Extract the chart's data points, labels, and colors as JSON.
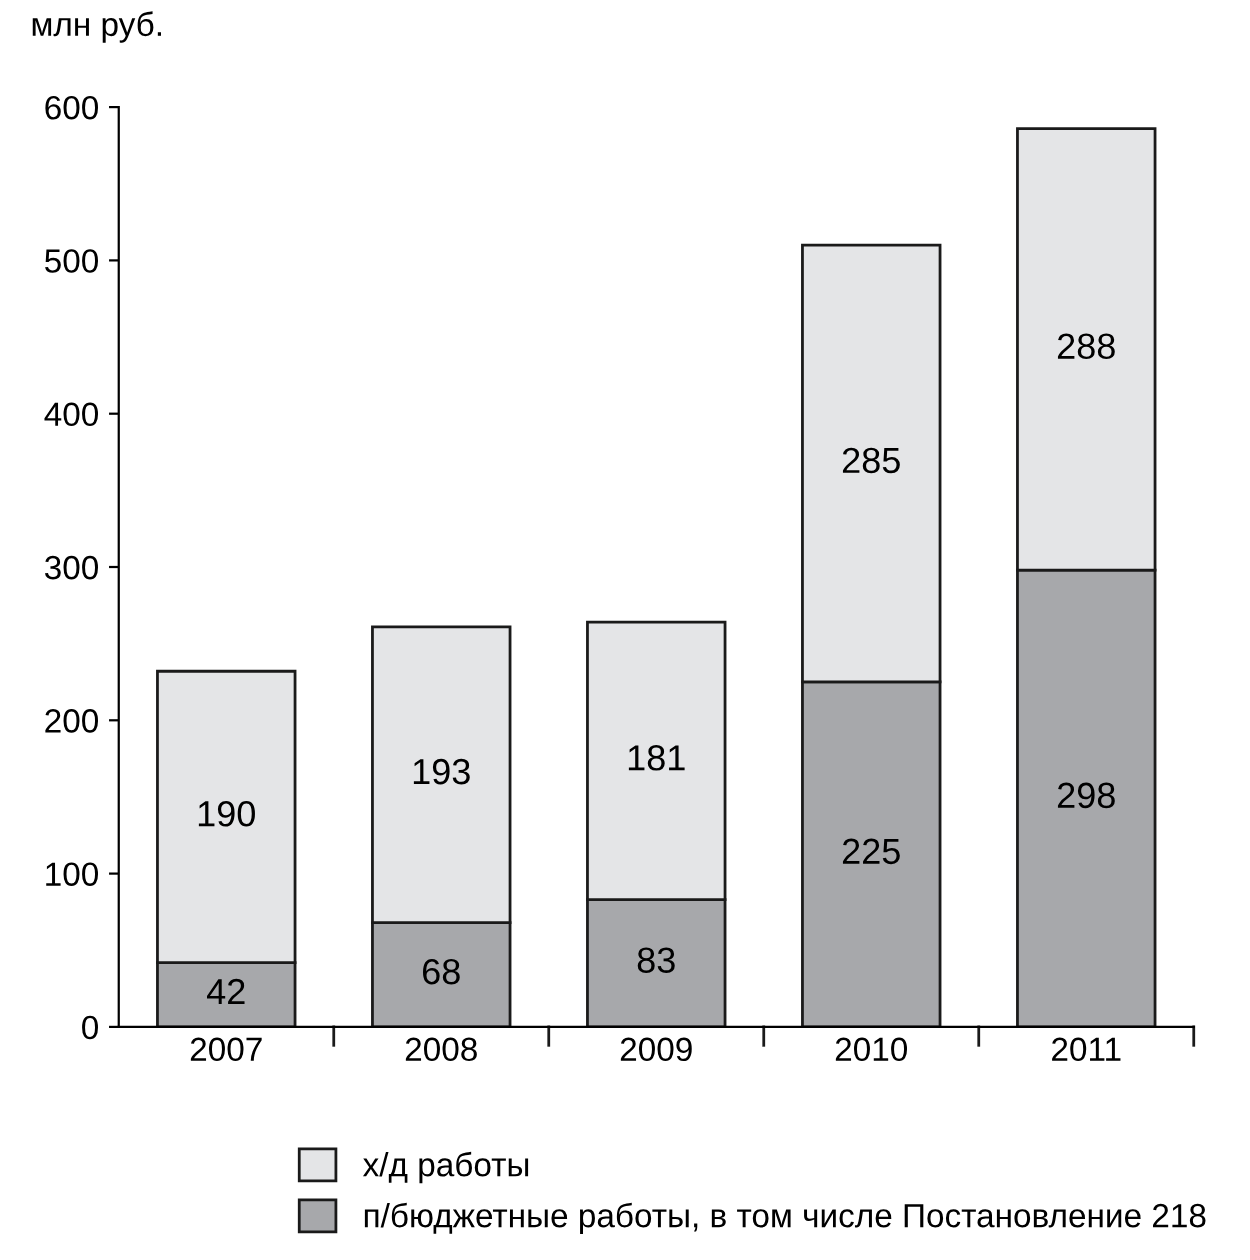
{
  "chart_data": {
    "type": "bar",
    "stacked": true,
    "ylabel": "млн руб.",
    "categories": [
      "2007",
      "2008",
      "2009",
      "2010",
      "2011"
    ],
    "series": [
      {
        "name": "п/бюджетные работы, в том числе Постановление 218",
        "color": "#a7a8ab",
        "values": [
          42,
          68,
          83,
          225,
          298
        ]
      },
      {
        "name": "х/д работы",
        "color": "#e4e5e7",
        "values": [
          190,
          193,
          181,
          285,
          288
        ]
      }
    ],
    "ylim": [
      0,
      600
    ],
    "yticks": [
      0,
      100,
      200,
      300,
      400,
      500,
      600
    ],
    "grid": false,
    "data_labels": true,
    "legend": "bottom"
  }
}
